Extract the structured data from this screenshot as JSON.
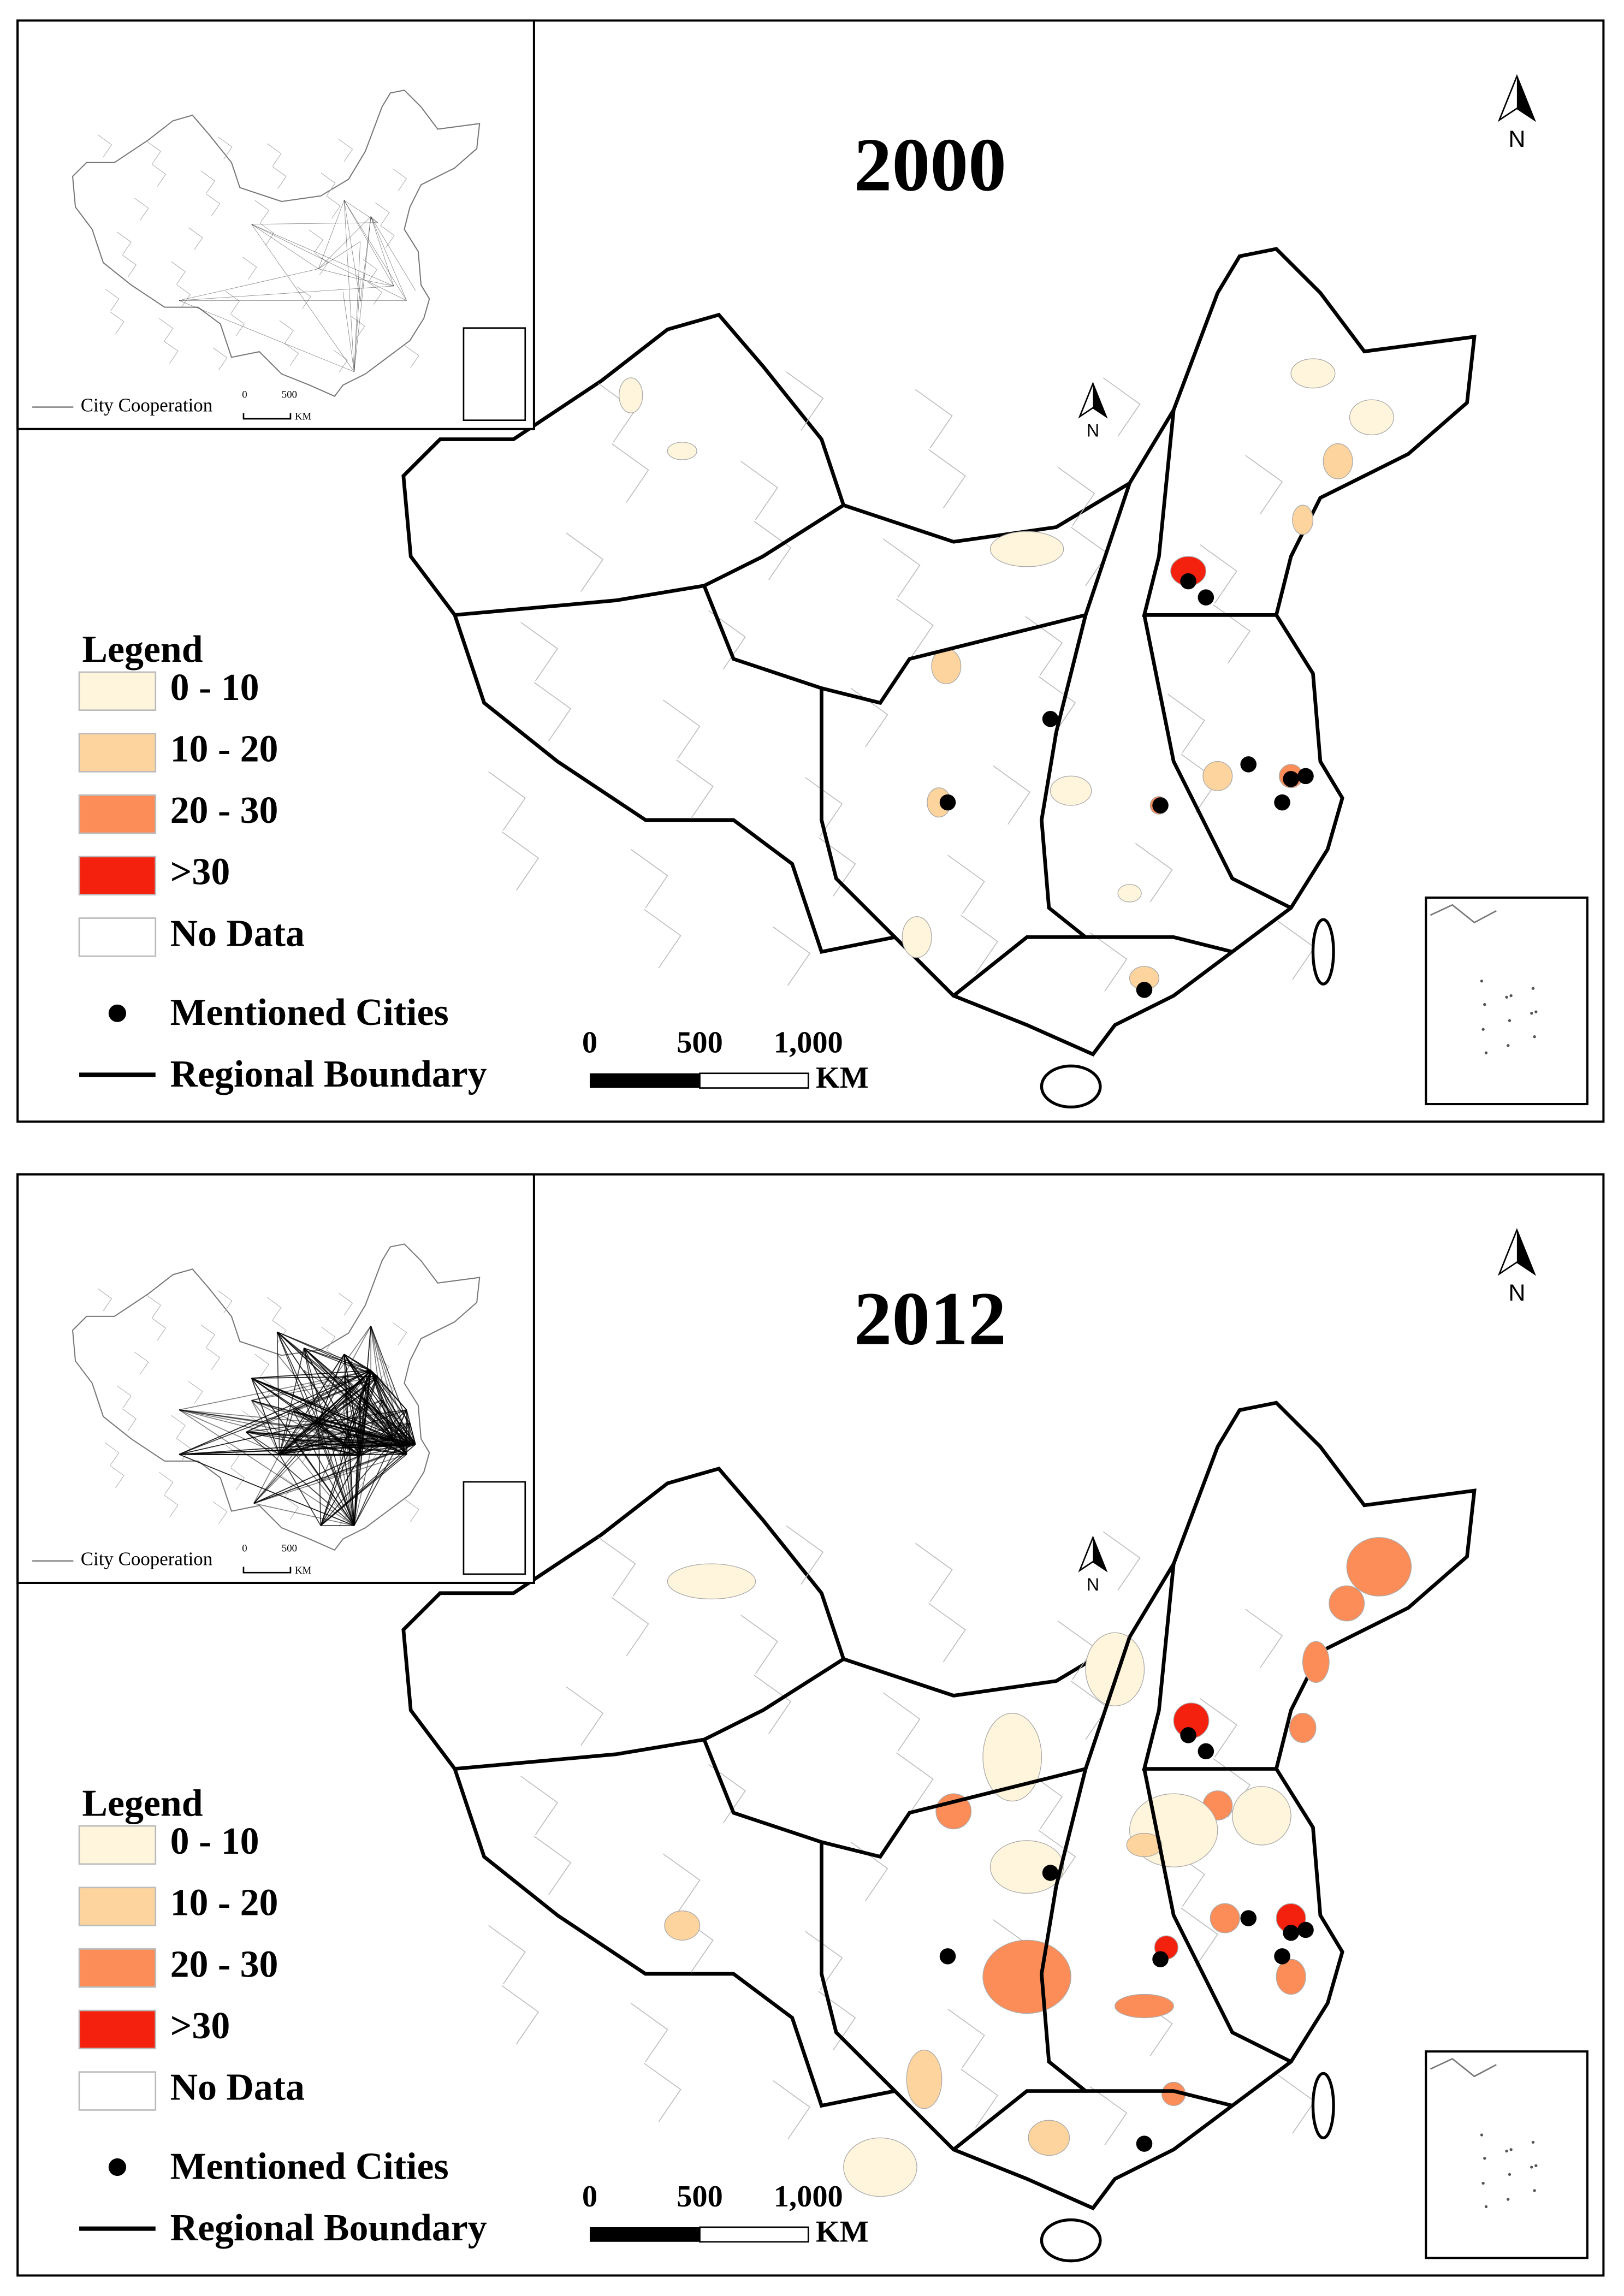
{
  "panels": [
    {
      "title": "2000",
      "north": "N",
      "inset": {
        "label": "City Cooperation",
        "scale": [
          "0",
          "500",
          "KM"
        ]
      },
      "legend": {
        "title": "Legend",
        "classes": [
          {
            "label": "0 - 10",
            "color": "#fff5dc"
          },
          {
            "label": "10 - 20",
            "color": "#fdd49e"
          },
          {
            "label": "20 - 30",
            "color": "#fc8d59"
          },
          {
            "label": ">30",
            "color": "#f5210f"
          },
          {
            "label": "No Data",
            "color": "#ffffff"
          }
        ],
        "mentioned": "Mentioned Cities",
        "boundary": "Regional Boundary"
      },
      "scale_bar": [
        "0",
        "500",
        "1,000",
        "KM"
      ]
    },
    {
      "title": "2012",
      "north": "N",
      "inset": {
        "label": "City Cooperation",
        "scale": [
          "0",
          "500",
          "KM"
        ]
      },
      "legend": {
        "title": "Legend",
        "classes": [
          {
            "label": "0 - 10",
            "color": "#fff5dc"
          },
          {
            "label": "10 - 20",
            "color": "#fdd49e"
          },
          {
            "label": "20 - 30",
            "color": "#fc8d59"
          },
          {
            "label": ">30",
            "color": "#f5210f"
          },
          {
            "label": "No Data",
            "color": "#ffffff"
          }
        ],
        "mentioned": "Mentioned Cities",
        "boundary": "Regional Boundary"
      },
      "scale_bar": [
        "0",
        "500",
        "1,000",
        "KM"
      ]
    }
  ]
}
